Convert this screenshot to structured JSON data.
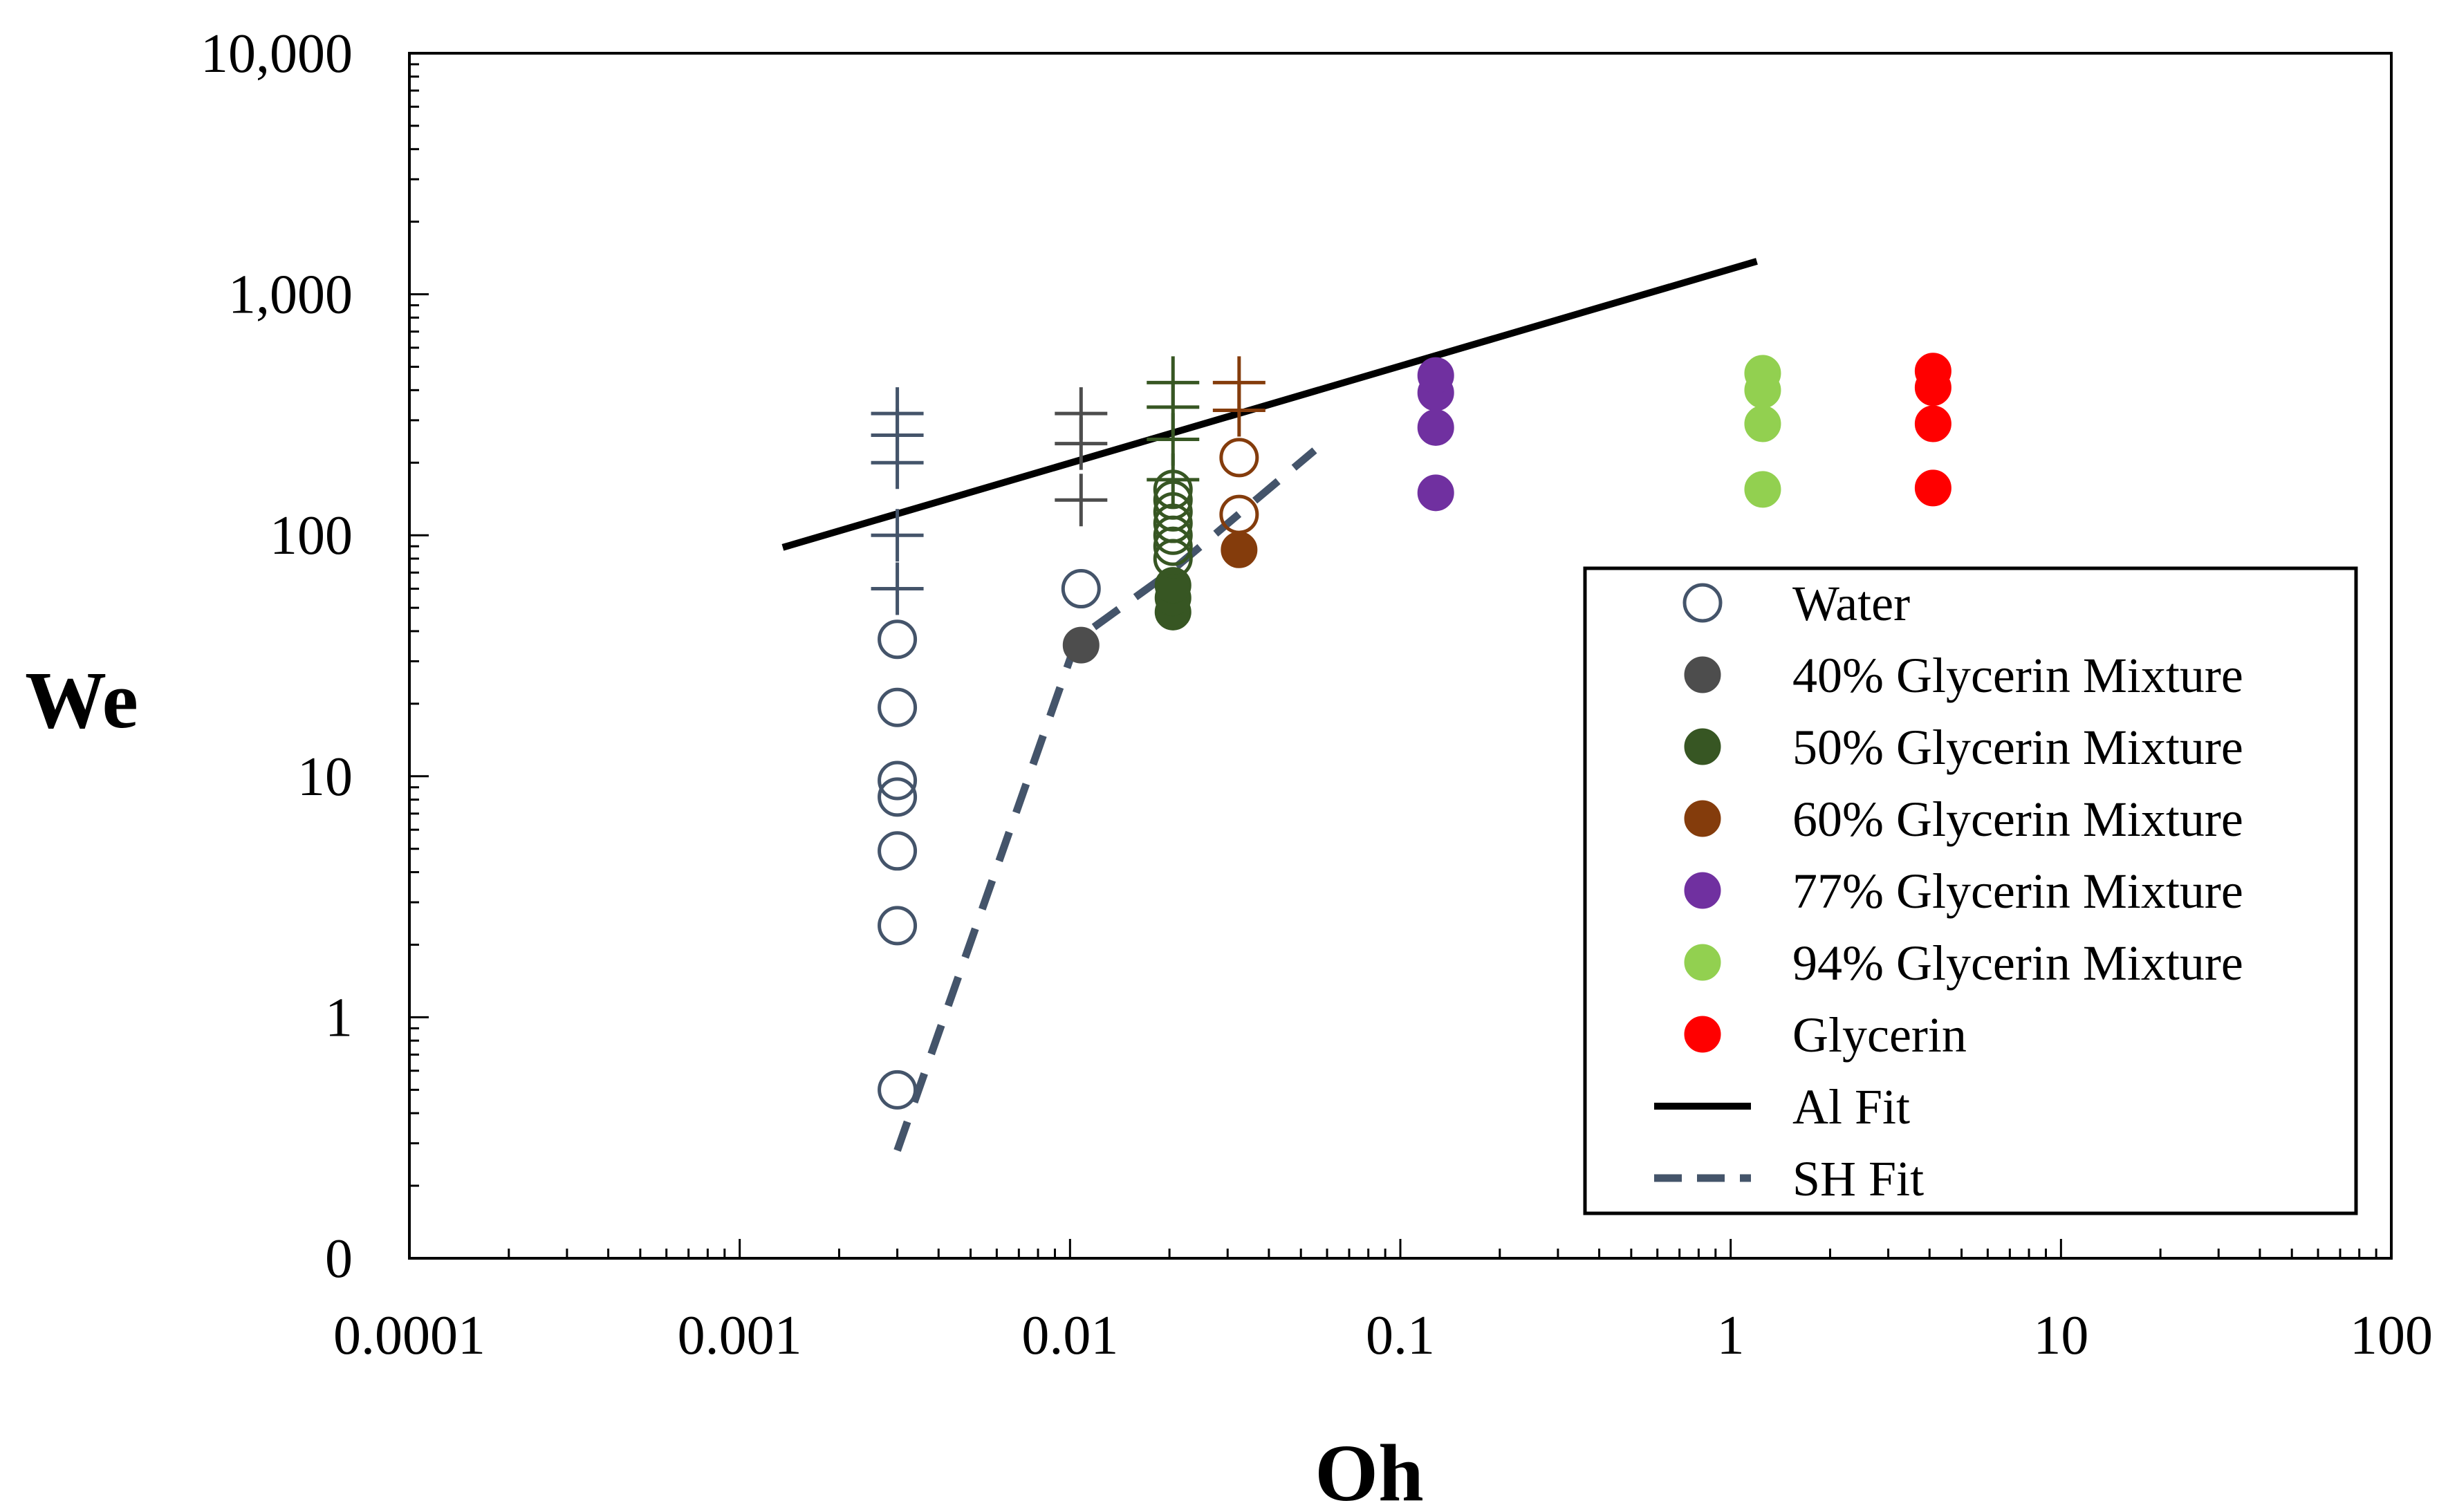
{
  "chart_data": {
    "type": "scatter",
    "xlabel": "Oh",
    "ylabel": "We",
    "x_scale": "log",
    "y_scale": "log",
    "xlim": [
      0.0001,
      100
    ],
    "ylim": [
      0.1,
      10000
    ],
    "x_ticks": [
      {
        "value": 0.0001,
        "label": "0.0001"
      },
      {
        "value": 0.001,
        "label": "0.001"
      },
      {
        "value": 0.01,
        "label": "0.01"
      },
      {
        "value": 0.1,
        "label": "0.1"
      },
      {
        "value": 1,
        "label": "1"
      },
      {
        "value": 10,
        "label": "10"
      },
      {
        "value": 100,
        "label": "100"
      }
    ],
    "y_ticks": [
      {
        "value": 0.1,
        "label": "0"
      },
      {
        "value": 1,
        "label": "1"
      },
      {
        "value": 10,
        "label": "10"
      },
      {
        "value": 100,
        "label": "100"
      },
      {
        "value": 1000,
        "label": "1,000"
      },
      {
        "value": 10000,
        "label": "10,000"
      }
    ],
    "legend_position": "bottom-right",
    "series": [
      {
        "name": "Water",
        "color": "#44546a",
        "marker": "open-circle",
        "points": [
          {
            "x": 0.003,
            "y": 0.5
          },
          {
            "x": 0.003,
            "y": 2.4
          },
          {
            "x": 0.003,
            "y": 4.9
          },
          {
            "x": 0.003,
            "y": 8.2
          },
          {
            "x": 0.003,
            "y": 9.6
          },
          {
            "x": 0.003,
            "y": 19.3
          },
          {
            "x": 0.003,
            "y": 37
          },
          {
            "x": 0.0108,
            "y": 60
          }
        ]
      },
      {
        "name": "40% Glycerin Mixture",
        "color": "#4d4d4d",
        "marker": "filled-circle",
        "points": [
          {
            "x": 0.0108,
            "y": 35
          }
        ]
      },
      {
        "name": "50% Glycerin Mixture",
        "color": "#375623",
        "marker": "filled-circle",
        "points": [
          {
            "x": 0.0205,
            "y": 48
          },
          {
            "x": 0.0205,
            "y": 55
          },
          {
            "x": 0.0205,
            "y": 62
          }
        ]
      },
      {
        "name": "50% Glycerin Mixture (open)",
        "color": "#375623",
        "marker": "open-circle",
        "points": [
          {
            "x": 0.0205,
            "y": 80
          },
          {
            "x": 0.0205,
            "y": 90
          },
          {
            "x": 0.0205,
            "y": 100
          },
          {
            "x": 0.0205,
            "y": 112
          },
          {
            "x": 0.0205,
            "y": 125
          },
          {
            "x": 0.0205,
            "y": 140
          },
          {
            "x": 0.0205,
            "y": 155
          }
        ]
      },
      {
        "name": "60% Glycerin Mixture",
        "color": "#843c0c",
        "marker": "filled-circle",
        "points": [
          {
            "x": 0.0325,
            "y": 87
          }
        ]
      },
      {
        "name": "60% Glycerin Mixture (open)",
        "color": "#843c0c",
        "marker": "open-circle",
        "points": [
          {
            "x": 0.0325,
            "y": 122
          },
          {
            "x": 0.0325,
            "y": 210
          }
        ]
      },
      {
        "name": "77% Glycerin Mixture",
        "color": "#7030a0",
        "marker": "filled-circle",
        "points": [
          {
            "x": 0.128,
            "y": 150
          },
          {
            "x": 0.128,
            "y": 280
          },
          {
            "x": 0.128,
            "y": 390
          },
          {
            "x": 0.128,
            "y": 460
          }
        ]
      },
      {
        "name": "94% Glycerin Mixture",
        "color": "#92d050",
        "marker": "filled-circle",
        "points": [
          {
            "x": 1.25,
            "y": 155
          },
          {
            "x": 1.25,
            "y": 290
          },
          {
            "x": 1.25,
            "y": 400
          },
          {
            "x": 1.25,
            "y": 470
          }
        ]
      },
      {
        "name": "Glycerin",
        "color": "#ff0000",
        "marker": "filled-circle",
        "points": [
          {
            "x": 4.1,
            "y": 157
          },
          {
            "x": 4.1,
            "y": 290
          },
          {
            "x": 4.1,
            "y": 410
          },
          {
            "x": 4.1,
            "y": 480
          }
        ]
      },
      {
        "name": "Water (cross)",
        "color": "#44546a",
        "marker": "plus",
        "points": [
          {
            "x": 0.003,
            "y": 60
          },
          {
            "x": 0.003,
            "y": 100
          },
          {
            "x": 0.003,
            "y": 200
          },
          {
            "x": 0.003,
            "y": 260
          },
          {
            "x": 0.003,
            "y": 320
          }
        ]
      },
      {
        "name": "40% Glycerin Mixture (cross)",
        "color": "#4d4d4d",
        "marker": "plus",
        "points": [
          {
            "x": 0.0108,
            "y": 140
          },
          {
            "x": 0.0108,
            "y": 240
          },
          {
            "x": 0.0108,
            "y": 320
          }
        ]
      },
      {
        "name": "50% Glycerin Mixture (cross)",
        "color": "#375623",
        "marker": "plus",
        "points": [
          {
            "x": 0.0205,
            "y": 170
          },
          {
            "x": 0.0205,
            "y": 250
          },
          {
            "x": 0.0205,
            "y": 340
          },
          {
            "x": 0.0205,
            "y": 430
          }
        ]
      },
      {
        "name": "60% Glycerin Mixture (cross)",
        "color": "#843c0c",
        "marker": "plus",
        "points": [
          {
            "x": 0.0325,
            "y": 330
          },
          {
            "x": 0.0325,
            "y": 430
          }
        ]
      }
    ],
    "lines": [
      {
        "name": "Al Fit",
        "color": "#000000",
        "dash": "solid",
        "points": [
          {
            "x": 0.00135,
            "y": 89
          },
          {
            "x": 1.2,
            "y": 1370
          }
        ]
      },
      {
        "name": "SH Fit",
        "color": "#44546a",
        "dash": "dashed",
        "points": [
          {
            "x": 0.003,
            "y": 0.28
          },
          {
            "x": 0.0105,
            "y": 37
          },
          {
            "x": 0.02,
            "y": 70
          },
          {
            "x": 0.055,
            "y": 225
          }
        ]
      }
    ],
    "legend": [
      {
        "label": "Water",
        "marker": "open-circle",
        "color": "#44546a"
      },
      {
        "label": "40% Glycerin Mixture",
        "marker": "filled-circle",
        "color": "#4d4d4d"
      },
      {
        "label": "50% Glycerin Mixture",
        "marker": "filled-circle",
        "color": "#375623"
      },
      {
        "label": "60% Glycerin Mixture",
        "marker": "filled-circle",
        "color": "#843c0c"
      },
      {
        "label": "77% Glycerin Mixture",
        "marker": "filled-circle",
        "color": "#7030a0"
      },
      {
        "label": "94% Glycerin Mixture",
        "marker": "filled-circle",
        "color": "#92d050"
      },
      {
        "label": "Glycerin",
        "marker": "filled-circle",
        "color": "#ff0000"
      },
      {
        "label": "Al Fit",
        "marker": "solid-line",
        "color": "#000000"
      },
      {
        "label": "SH Fit",
        "marker": "dashed-line",
        "color": "#44546a"
      }
    ]
  }
}
